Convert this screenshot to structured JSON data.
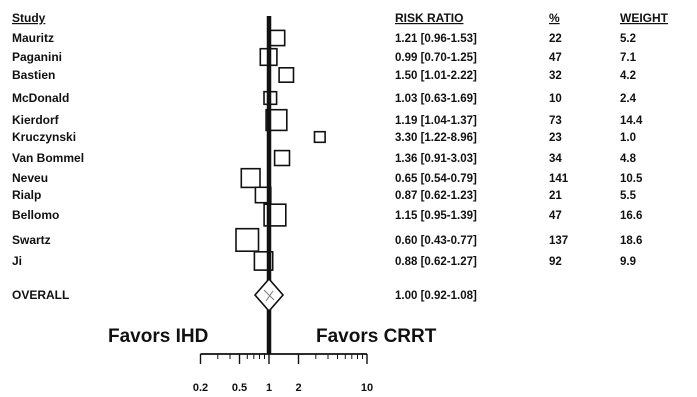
{
  "chart_data": {
    "type": "forest",
    "columns": {
      "study": "Study",
      "risk_ratio": "RISK RATIO",
      "percent": "%",
      "weight": "WEIGHT"
    },
    "studies": [
      {
        "name": "Mauritz",
        "rr": 1.21,
        "rr_text": "1.21 [0.96-1.53]",
        "percent": "22",
        "weight": "5.2"
      },
      {
        "name": "Paganini",
        "rr": 0.99,
        "rr_text": "0.99 [0.70-1.25]",
        "percent": "47",
        "weight": "7.1"
      },
      {
        "name": "Bastien",
        "rr": 1.5,
        "rr_text": "1.50 [1.01-2.22]",
        "percent": "32",
        "weight": "4.2"
      },
      {
        "name": "McDonald",
        "rr": 1.03,
        "rr_text": "1.03 [0.63-1.69]",
        "percent": "10",
        "weight": "2.4"
      },
      {
        "name": "Kierdorf",
        "rr": 1.19,
        "rr_text": "1.19 [1.04-1.37]",
        "percent": "73",
        "weight": "14.4"
      },
      {
        "name": "Kruczynski",
        "rr": 3.3,
        "rr_text": "3.30 [1.22-8.96]",
        "percent": "23",
        "weight": "1.0"
      },
      {
        "name": "Van Bommel",
        "rr": 1.36,
        "rr_text": "1.36 [0.91-3.03]",
        "percent": "34",
        "weight": "4.8"
      },
      {
        "name": "Neveu",
        "rr": 0.65,
        "rr_text": "0.65 [0.54-0.79]",
        "percent": "141",
        "weight": "10.5"
      },
      {
        "name": "Rialp",
        "rr": 0.87,
        "rr_text": "0.87 [0.62-1.23]",
        "percent": "21",
        "weight": "5.5"
      },
      {
        "name": "Bellomo",
        "rr": 1.15,
        "rr_text": "1.15 [0.95-1.39]",
        "percent": "47",
        "weight": "16.6"
      },
      {
        "name": "Swartz",
        "rr": 0.6,
        "rr_text": "0.60 [0.43-0.77]",
        "percent": "137",
        "weight": "18.6"
      },
      {
        "name": "Ji",
        "rr": 0.88,
        "rr_text": "0.88 [0.62-1.27]",
        "percent": "92",
        "weight": "9.9"
      }
    ],
    "overall": {
      "name": "OVERALL",
      "rr": 1.0,
      "rr_text": "1.00 [0.92-1.08]"
    },
    "x_axis": {
      "scale": "log",
      "ticks": [
        0.2,
        0.5,
        1,
        2,
        10
      ],
      "tick_labels": [
        "0.2",
        "0.5",
        "1",
        "2",
        "10"
      ],
      "xlim": [
        0.2,
        10
      ]
    },
    "favors_left": "Favors IHD",
    "favors_right": "Favors CRRT",
    "reference_line": 1
  }
}
